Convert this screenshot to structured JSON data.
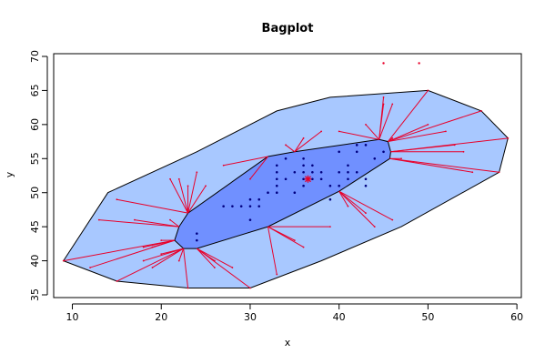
{
  "chart_data": {
    "type": "scatter",
    "subtype": "bagplot",
    "title": "Bagplot",
    "xlabel": "x",
    "ylabel": "y",
    "xlim": [
      7.9,
      60.5
    ],
    "ylim": [
      34.6,
      70.4
    ],
    "xticks": [
      10,
      20,
      30,
      40,
      50,
      60
    ],
    "yticks": [
      35,
      40,
      45,
      50,
      55,
      60,
      65,
      70
    ],
    "grid": false,
    "colors": {
      "fence": "#a8c8ff",
      "bag": "#7090ff",
      "whiskers": "#e8002a",
      "points": "#000080",
      "center": "#e8002a",
      "outliers": "#e8002a"
    },
    "center": {
      "x": 36.5,
      "y": 52
    },
    "loop": [
      {
        "x": 9,
        "y": 40
      },
      {
        "x": 14,
        "y": 50
      },
      {
        "x": 24,
        "y": 56
      },
      {
        "x": 33,
        "y": 62
      },
      {
        "x": 39,
        "y": 64
      },
      {
        "x": 50,
        "y": 65
      },
      {
        "x": 56,
        "y": 62
      },
      {
        "x": 59,
        "y": 58
      },
      {
        "x": 58,
        "y": 53
      },
      {
        "x": 47,
        "y": 45
      },
      {
        "x": 38,
        "y": 40
      },
      {
        "x": 30,
        "y": 36
      },
      {
        "x": 23,
        "y": 36
      },
      {
        "x": 15,
        "y": 37
      }
    ],
    "bag": [
      {
        "x": 22,
        "y": 45
      },
      {
        "x": 23,
        "y": 47
      },
      {
        "x": 32,
        "y": 55.3
      },
      {
        "x": 35,
        "y": 56
      },
      {
        "x": 44.5,
        "y": 57.8
      },
      {
        "x": 45.5,
        "y": 57.5
      },
      {
        "x": 45.8,
        "y": 56
      },
      {
        "x": 45.7,
        "y": 55
      },
      {
        "x": 40,
        "y": 50.2
      },
      {
        "x": 32,
        "y": 45
      },
      {
        "x": 24,
        "y": 41.8
      },
      {
        "x": 22.5,
        "y": 41.8
      },
      {
        "x": 21.5,
        "y": 43
      }
    ],
    "inner_points": [
      {
        "x": 24,
        "y": 43
      },
      {
        "x": 24,
        "y": 44
      },
      {
        "x": 27,
        "y": 48
      },
      {
        "x": 28,
        "y": 48
      },
      {
        "x": 29,
        "y": 48
      },
      {
        "x": 30,
        "y": 46
      },
      {
        "x": 30,
        "y": 48
      },
      {
        "x": 30,
        "y": 49
      },
      {
        "x": 31,
        "y": 48
      },
      {
        "x": 31,
        "y": 49
      },
      {
        "x": 32,
        "y": 50
      },
      {
        "x": 33,
        "y": 50
      },
      {
        "x": 33,
        "y": 51
      },
      {
        "x": 33,
        "y": 52
      },
      {
        "x": 33,
        "y": 53
      },
      {
        "x": 33,
        "y": 54
      },
      {
        "x": 34,
        "y": 52
      },
      {
        "x": 34,
        "y": 55
      },
      {
        "x": 35,
        "y": 50
      },
      {
        "x": 35,
        "y": 53
      },
      {
        "x": 36,
        "y": 51
      },
      {
        "x": 36,
        "y": 52
      },
      {
        "x": 36,
        "y": 53
      },
      {
        "x": 36,
        "y": 54
      },
      {
        "x": 36,
        "y": 55
      },
      {
        "x": 37,
        "y": 52
      },
      {
        "x": 37,
        "y": 53
      },
      {
        "x": 37,
        "y": 54
      },
      {
        "x": 38,
        "y": 52
      },
      {
        "x": 38,
        "y": 53
      },
      {
        "x": 39,
        "y": 51
      },
      {
        "x": 39,
        "y": 49
      },
      {
        "x": 40,
        "y": 51
      },
      {
        "x": 40,
        "y": 53
      },
      {
        "x": 40,
        "y": 56
      },
      {
        "x": 41,
        "y": 52
      },
      {
        "x": 41,
        "y": 53
      },
      {
        "x": 41,
        "y": 54
      },
      {
        "x": 42,
        "y": 53
      },
      {
        "x": 42,
        "y": 56
      },
      {
        "x": 42,
        "y": 57
      },
      {
        "x": 43,
        "y": 51
      },
      {
        "x": 43,
        "y": 52
      },
      {
        "x": 43,
        "y": 57
      },
      {
        "x": 44,
        "y": 55
      },
      {
        "x": 45,
        "y": 56
      }
    ],
    "outer_points": [
      {
        "x": 9,
        "y": 40
      },
      {
        "x": 12,
        "y": 39
      },
      {
        "x": 13,
        "y": 46
      },
      {
        "x": 15,
        "y": 49
      },
      {
        "x": 15,
        "y": 37
      },
      {
        "x": 17,
        "y": 46
      },
      {
        "x": 18,
        "y": 42
      },
      {
        "x": 18,
        "y": 40
      },
      {
        "x": 19,
        "y": 39
      },
      {
        "x": 19,
        "y": 42
      },
      {
        "x": 20,
        "y": 43
      },
      {
        "x": 20,
        "y": 41
      },
      {
        "x": 21,
        "y": 46
      },
      {
        "x": 21,
        "y": 52
      },
      {
        "x": 22,
        "y": 52
      },
      {
        "x": 22,
        "y": 40
      },
      {
        "x": 23,
        "y": 51
      },
      {
        "x": 23,
        "y": 36
      },
      {
        "x": 24,
        "y": 53
      },
      {
        "x": 25,
        "y": 51
      },
      {
        "x": 26,
        "y": 40
      },
      {
        "x": 26,
        "y": 39
      },
      {
        "x": 27,
        "y": 54
      },
      {
        "x": 28,
        "y": 39
      },
      {
        "x": 30,
        "y": 36
      },
      {
        "x": 30,
        "y": 52
      },
      {
        "x": 33,
        "y": 38
      },
      {
        "x": 34,
        "y": 57
      },
      {
        "x": 35,
        "y": 43
      },
      {
        "x": 36,
        "y": 42
      },
      {
        "x": 36,
        "y": 58
      },
      {
        "x": 38,
        "y": 59
      },
      {
        "x": 39,
        "y": 45
      },
      {
        "x": 40,
        "y": 59
      },
      {
        "x": 41,
        "y": 48
      },
      {
        "x": 43,
        "y": 60
      },
      {
        "x": 43,
        "y": 47
      },
      {
        "x": 44,
        "y": 45
      },
      {
        "x": 45,
        "y": 63
      },
      {
        "x": 45,
        "y": 64
      },
      {
        "x": 46,
        "y": 46
      },
      {
        "x": 46,
        "y": 63
      },
      {
        "x": 46,
        "y": 58
      },
      {
        "x": 47,
        "y": 55
      },
      {
        "x": 50,
        "y": 65
      },
      {
        "x": 50,
        "y": 60
      },
      {
        "x": 52,
        "y": 59
      },
      {
        "x": 53,
        "y": 57
      },
      {
        "x": 54,
        "y": 56
      },
      {
        "x": 55,
        "y": 53
      },
      {
        "x": 56,
        "y": 62
      },
      {
        "x": 58,
        "y": 53
      },
      {
        "x": 59,
        "y": 58
      }
    ],
    "outliers": [
      {
        "x": 45,
        "y": 69
      },
      {
        "x": 49,
        "y": 69
      }
    ]
  }
}
